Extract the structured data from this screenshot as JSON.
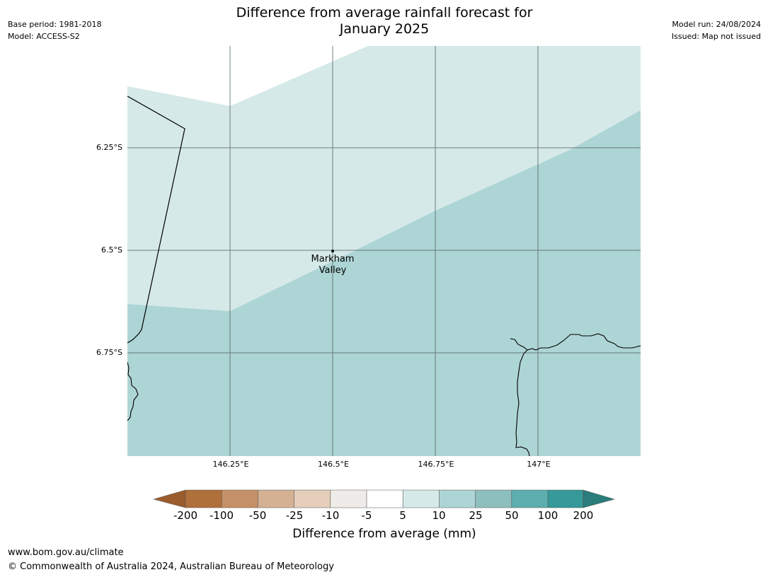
{
  "title_line1": "Difference from average rainfall forecast for",
  "title_line2": "January 2025",
  "meta_left": {
    "base_period": "Base period: 1981-2018",
    "model": "Model: ACCESS-S2"
  },
  "meta_right": {
    "model_run": "Model run: 24/08/2024",
    "issued": "Issued: Map not issued"
  },
  "map": {
    "lat_ticks": [
      "6.25°S",
      "6.5°S",
      "6.75°S"
    ],
    "lon_ticks": [
      "146.25°E",
      "146.5°E",
      "146.75°E",
      "147°E"
    ],
    "place": {
      "name_line1": "Markham",
      "name_line2": "Valley"
    },
    "colors": {
      "band_5_10": "#d5e9e8",
      "band_10_25": "#aed5d5"
    }
  },
  "colorbar": {
    "labels": [
      "-200",
      "-100",
      "-50",
      "-25",
      "-10",
      "-5",
      "5",
      "10",
      "25",
      "50",
      "100",
      "200"
    ],
    "colors": [
      "#9b5c2c",
      "#b07039",
      "#c49067",
      "#d4b192",
      "#e5cfbb",
      "#efebe8",
      "#ffffff",
      "#d5e9e8",
      "#aed5d5",
      "#8ebfbf",
      "#5daeae",
      "#359a99",
      "#2a7d7b"
    ],
    "title": "Difference from average (mm)"
  },
  "footer": {
    "url": "www.bom.gov.au/climate",
    "copyright": "© Commonwealth of Australia 2024, Australian Bureau of Meteorology"
  }
}
